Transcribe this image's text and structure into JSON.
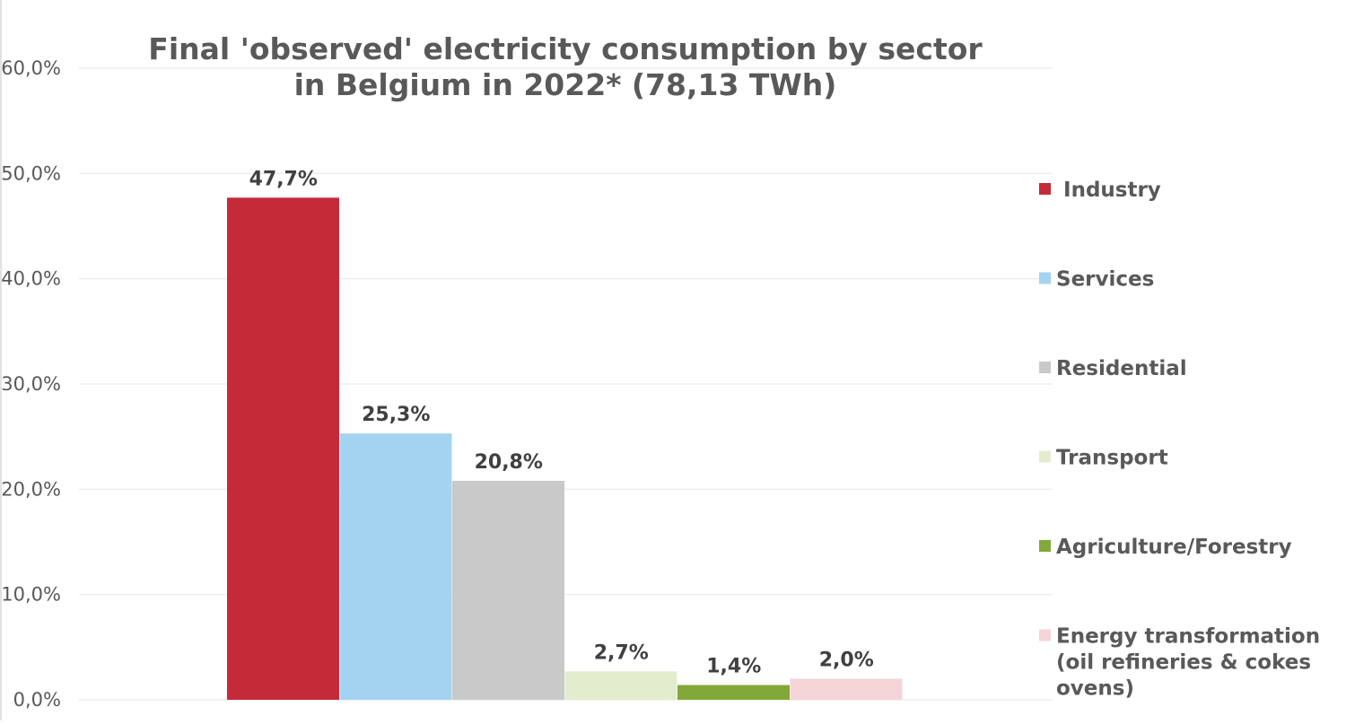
{
  "chart_data": {
    "type": "bar",
    "title_lines": [
      "Final 'observed' electricity consumption by sector",
      "in Belgium in 2022* (78,13 TWh)"
    ],
    "xlabel": "",
    "ylabel": "",
    "ylim": [
      0,
      60
    ],
    "y_ticks": [
      0,
      10,
      20,
      30,
      40,
      50,
      60
    ],
    "y_tick_labels": [
      "0,0%",
      "10,0%",
      "20,0%",
      "30,0%",
      "40,0%",
      "50,0%",
      "60,0%"
    ],
    "grid": true,
    "legend_position": "right",
    "series": [
      {
        "name": " Industry",
        "legend_lines": [
          " Industry"
        ],
        "value": 47.7,
        "label": "47,7%",
        "color": "#c52a38"
      },
      {
        "name": "Services",
        "legend_lines": [
          "Services"
        ],
        "value": 25.3,
        "label": "25,3%",
        "color": "#a3d3f1"
      },
      {
        "name": "Residential",
        "legend_lines": [
          "Residential"
        ],
        "value": 20.8,
        "label": "20,8%",
        "color": "#c9c9c9"
      },
      {
        "name": "Transport",
        "legend_lines": [
          "Transport"
        ],
        "value": 2.7,
        "label": "2,7%",
        "color": "#e2edcd"
      },
      {
        "name": "Agriculture/Forestry",
        "legend_lines": [
          "Agriculture/Forestry"
        ],
        "value": 1.4,
        "label": "1,4%",
        "color": "#83a83a"
      },
      {
        "name": "Energy transformation (oil refineries & cokes ovens)",
        "legend_lines": [
          "Energy transformation",
          "(oil refineries & cokes",
          "ovens)"
        ],
        "value": 2.0,
        "label": "2,0%",
        "color": "#f5d4d7"
      }
    ]
  }
}
